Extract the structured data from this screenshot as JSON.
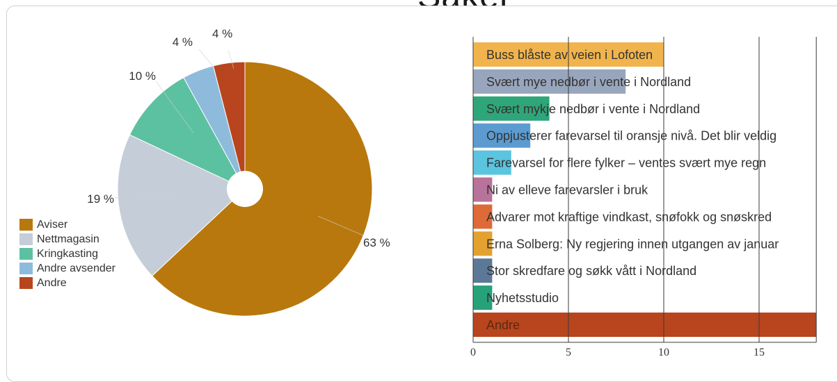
{
  "page": {
    "title": "Saker"
  },
  "colors": {
    "aviser": "#b8780d",
    "nettmagasin": "#c5cdd8",
    "kringkasting": "#5cc1a0",
    "andre_avsender": "#8ebbdc",
    "andre": "#b8451d"
  },
  "chart_data": [
    {
      "type": "pie",
      "donut": true,
      "categories": [
        "Aviser",
        "Nettmagasin",
        "Kringkasting",
        "Andre avsender",
        "Andre"
      ],
      "values": [
        63,
        19,
        10,
        4,
        4
      ],
      "labels": [
        "63 %",
        "19 %",
        "10 %",
        "4 %",
        "4 %"
      ],
      "colors": [
        "#b8780d",
        "#c5cdd8",
        "#5cc1a0",
        "#8ebbdc",
        "#b8451d"
      ],
      "legend": [
        "Aviser",
        "Nettmagasin",
        "Kringkasting",
        "Andre avsender",
        "Andre"
      ],
      "legend_position": "bottom-left"
    },
    {
      "type": "bar",
      "orientation": "horizontal",
      "categories": [
        "Buss blåste av veien i Lofoten",
        "Svært mye nedbør i vente i Nordland",
        "Svært mykje nedbør i vente i Nordland",
        "Oppjusterer farevarsel til oransje nivå. Det blir veldig",
        "Farevarsel for flere fylker – ventes svært mye regn",
        "Ni av elleve farevarsler i bruk",
        "Advarer mot kraftige vindkast, snøfokk og snøskred",
        "Erna Solberg: Ny regjering innen utgangen av januar",
        "Stor skredfare og søkk vått i Nordland",
        "Nyhetsstudio",
        "Andre"
      ],
      "values": [
        10,
        8,
        4,
        3,
        2,
        1,
        1,
        1,
        1,
        1,
        18
      ],
      "colors": [
        "#f1b44c",
        "#98a6bd",
        "#2fa57a",
        "#5b9bd0",
        "#5bc4de",
        "#b8739a",
        "#de6a38",
        "#e3a230",
        "#5c7898",
        "#26a17a",
        "#b8451d"
      ],
      "xlim": [
        0,
        18
      ],
      "xticks": [
        0,
        5,
        10,
        15
      ],
      "grid": true
    }
  ]
}
